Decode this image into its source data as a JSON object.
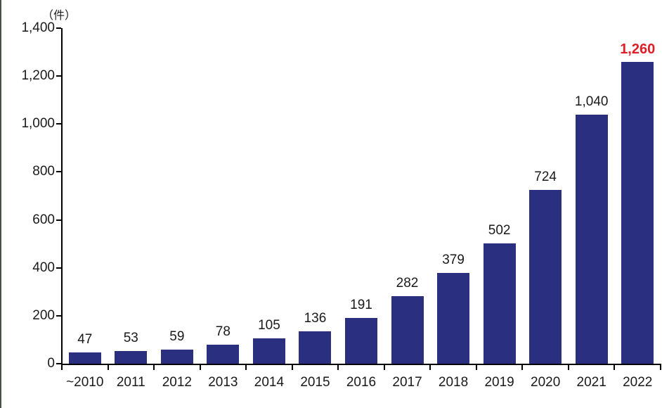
{
  "chart_data": {
    "type": "bar",
    "title": "",
    "unit_label": "（件）",
    "categories": [
      "~2010",
      "2011",
      "2012",
      "2013",
      "2014",
      "2015",
      "2016",
      "2017",
      "2018",
      "2019",
      "2020",
      "2021",
      "2022"
    ],
    "values": [
      47,
      53,
      59,
      78,
      105,
      136,
      191,
      282,
      379,
      502,
      724,
      1040,
      1260
    ],
    "value_labels": [
      "47",
      "53",
      "59",
      "78",
      "105",
      "136",
      "191",
      "282",
      "379",
      "502",
      "724",
      "1,040",
      "1,260"
    ],
    "highlight_index": 12,
    "xlabel": "",
    "ylabel": "（件）",
    "ylim": [
      0,
      1400
    ],
    "y_tick_step": 200,
    "y_ticks": [
      0,
      200,
      400,
      600,
      800,
      1000,
      1200,
      1400
    ],
    "y_tick_labels": [
      "0",
      "200",
      "400",
      "600",
      "800",
      "1,000",
      "1,200",
      "1,400"
    ],
    "grid": "off",
    "legend": "none",
    "colors": {
      "bar": "#2A2F7F",
      "highlight_label": "#DF1E26",
      "axis": "#000000",
      "text": "#1A1A1A"
    }
  }
}
